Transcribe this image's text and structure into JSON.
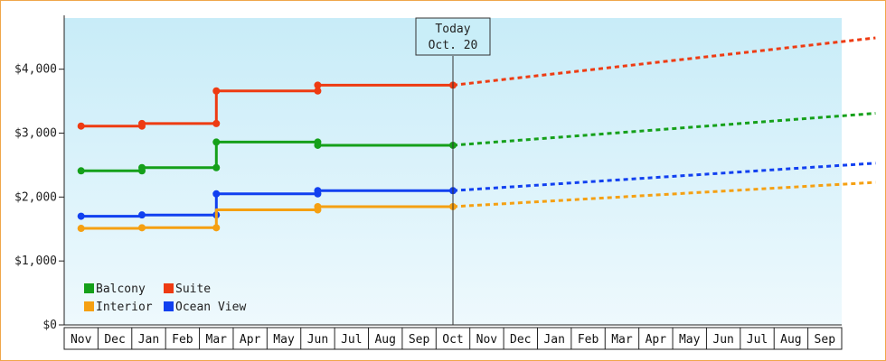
{
  "chart_data": {
    "type": "line",
    "title": "",
    "xlabel": "",
    "ylabel": "",
    "ylim": [
      0,
      4800
    ],
    "yticks": [
      0,
      1000,
      2000,
      3000,
      4000
    ],
    "ytick_labels": [
      "$0",
      "$1,000",
      "$2,000",
      "$3,000",
      "$4,000"
    ],
    "xtick_labels": [
      "Nov",
      "Dec",
      "Jan",
      "Feb",
      "Mar",
      "Apr",
      "May",
      "Jun",
      "Jul",
      "Aug",
      "Sep",
      "Oct",
      "Nov",
      "Dec",
      "Jan",
      "Feb",
      "Mar",
      "Apr",
      "May",
      "Jun",
      "Jul",
      "Aug",
      "Sep"
    ],
    "today_index": 11,
    "today_label": [
      "Today",
      "Oct. 20"
    ],
    "legend_position": "bottom-left",
    "grid": false,
    "series": [
      {
        "name": "Suite",
        "color": "#ee3b12",
        "history": [
          [
            0,
            3110
          ],
          [
            1.8,
            3110
          ],
          [
            1.8,
            3150
          ],
          [
            4,
            3150
          ],
          [
            4,
            3660
          ],
          [
            7,
            3660
          ],
          [
            7,
            3750
          ],
          [
            11,
            3750
          ]
        ],
        "markers": [
          [
            0,
            3110
          ],
          [
            1.8,
            3110
          ],
          [
            1.8,
            3150
          ],
          [
            4,
            3150
          ],
          [
            4,
            3660
          ],
          [
            7,
            3660
          ],
          [
            7,
            3750
          ],
          [
            11,
            3750
          ]
        ],
        "forecast": [
          [
            11,
            3750
          ],
          [
            23,
            4490
          ]
        ]
      },
      {
        "name": "Balcony",
        "color": "#15a01a",
        "history": [
          [
            0,
            2410
          ],
          [
            1.8,
            2410
          ],
          [
            1.8,
            2460
          ],
          [
            4,
            2460
          ],
          [
            4,
            2860
          ],
          [
            7,
            2860
          ],
          [
            7,
            2810
          ],
          [
            11,
            2810
          ]
        ],
        "markers": [
          [
            0,
            2410
          ],
          [
            1.8,
            2410
          ],
          [
            1.8,
            2460
          ],
          [
            4,
            2460
          ],
          [
            4,
            2860
          ],
          [
            7,
            2860
          ],
          [
            7,
            2810
          ],
          [
            11,
            2810
          ]
        ],
        "forecast": [
          [
            11,
            2810
          ],
          [
            23,
            3310
          ]
        ]
      },
      {
        "name": "Ocean View",
        "color": "#1140f0",
        "history": [
          [
            0,
            1700
          ],
          [
            1.8,
            1700
          ],
          [
            1.8,
            1720
          ],
          [
            4,
            1720
          ],
          [
            4,
            2050
          ],
          [
            7,
            2050
          ],
          [
            7,
            2100
          ],
          [
            11,
            2100
          ]
        ],
        "markers": [
          [
            0,
            1700
          ],
          [
            1.8,
            1720
          ],
          [
            4,
            1720
          ],
          [
            4,
            2050
          ],
          [
            7,
            2050
          ],
          [
            7,
            2100
          ],
          [
            11,
            2100
          ]
        ],
        "forecast": [
          [
            11,
            2100
          ],
          [
            23,
            2530
          ]
        ]
      },
      {
        "name": "Interior",
        "color": "#f5a012",
        "history": [
          [
            0,
            1510
          ],
          [
            1.8,
            1510
          ],
          [
            1.8,
            1520
          ],
          [
            4,
            1520
          ],
          [
            4,
            1800
          ],
          [
            7,
            1800
          ],
          [
            7,
            1850
          ],
          [
            11,
            1850
          ]
        ],
        "markers": [
          [
            0,
            1510
          ],
          [
            1.8,
            1520
          ],
          [
            4,
            1520
          ],
          [
            7,
            1800
          ],
          [
            7,
            1850
          ],
          [
            11,
            1850
          ]
        ],
        "forecast": [
          [
            11,
            1850
          ],
          [
            23,
            2230
          ]
        ]
      }
    ],
    "legend": [
      {
        "name": "Balcony",
        "color": "#15a01a"
      },
      {
        "name": "Suite",
        "color": "#ee3b12"
      },
      {
        "name": "Interior",
        "color": "#f5a012"
      },
      {
        "name": "Ocean View",
        "color": "#1140f0"
      }
    ]
  }
}
